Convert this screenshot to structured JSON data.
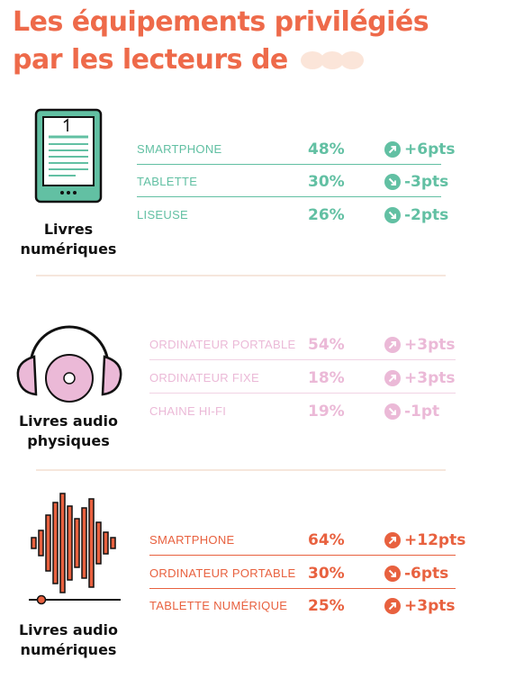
{
  "title": {
    "line1": "Les équipements privilégiés",
    "line2": "par les lecteurs de"
  },
  "colors": {
    "title": "#ee6a4a",
    "teal": "#62c0a3",
    "pink": "#ebb9d7",
    "orange": "#e8613f"
  },
  "sections": [
    {
      "category_line1": "Livres",
      "category_line2": "numériques",
      "icon": "ereader-icon",
      "rows": [
        {
          "label": "SMARTPHONE",
          "pct": "48%",
          "delta": "+6pts",
          "direction": "up"
        },
        {
          "label": "TABLETTE",
          "pct": "30%",
          "delta": "-3pts",
          "direction": "down"
        },
        {
          "label": "LISEUSE",
          "pct": "26%",
          "delta": "-2pts",
          "direction": "down"
        }
      ]
    },
    {
      "category_line1": "Livres audio",
      "category_line2": "physiques",
      "icon": "headphones-cd-icon",
      "rows": [
        {
          "label": "ORDINATEUR PORTABLE",
          "pct": "54%",
          "delta": "+3pts",
          "direction": "up"
        },
        {
          "label": "ORDINATEUR FIXE",
          "pct": "18%",
          "delta": "+3pts",
          "direction": "up"
        },
        {
          "label": "CHAINE HI-FI",
          "pct": "19%",
          "delta": "-1pt",
          "direction": "down"
        }
      ]
    },
    {
      "category_line1": "Livres audio",
      "category_line2": "numériques",
      "icon": "sound-wave-icon",
      "rows": [
        {
          "label": "SMARTPHONE",
          "pct": "64%",
          "delta": "+12pts",
          "direction": "up"
        },
        {
          "label": "ORDINATEUR PORTABLE",
          "pct": "30%",
          "delta": "-6pts",
          "direction": "down"
        },
        {
          "label": "TABLETTE NUMÉRIQUE",
          "pct": "25%",
          "delta": "+3pts",
          "direction": "up"
        }
      ]
    }
  ]
}
